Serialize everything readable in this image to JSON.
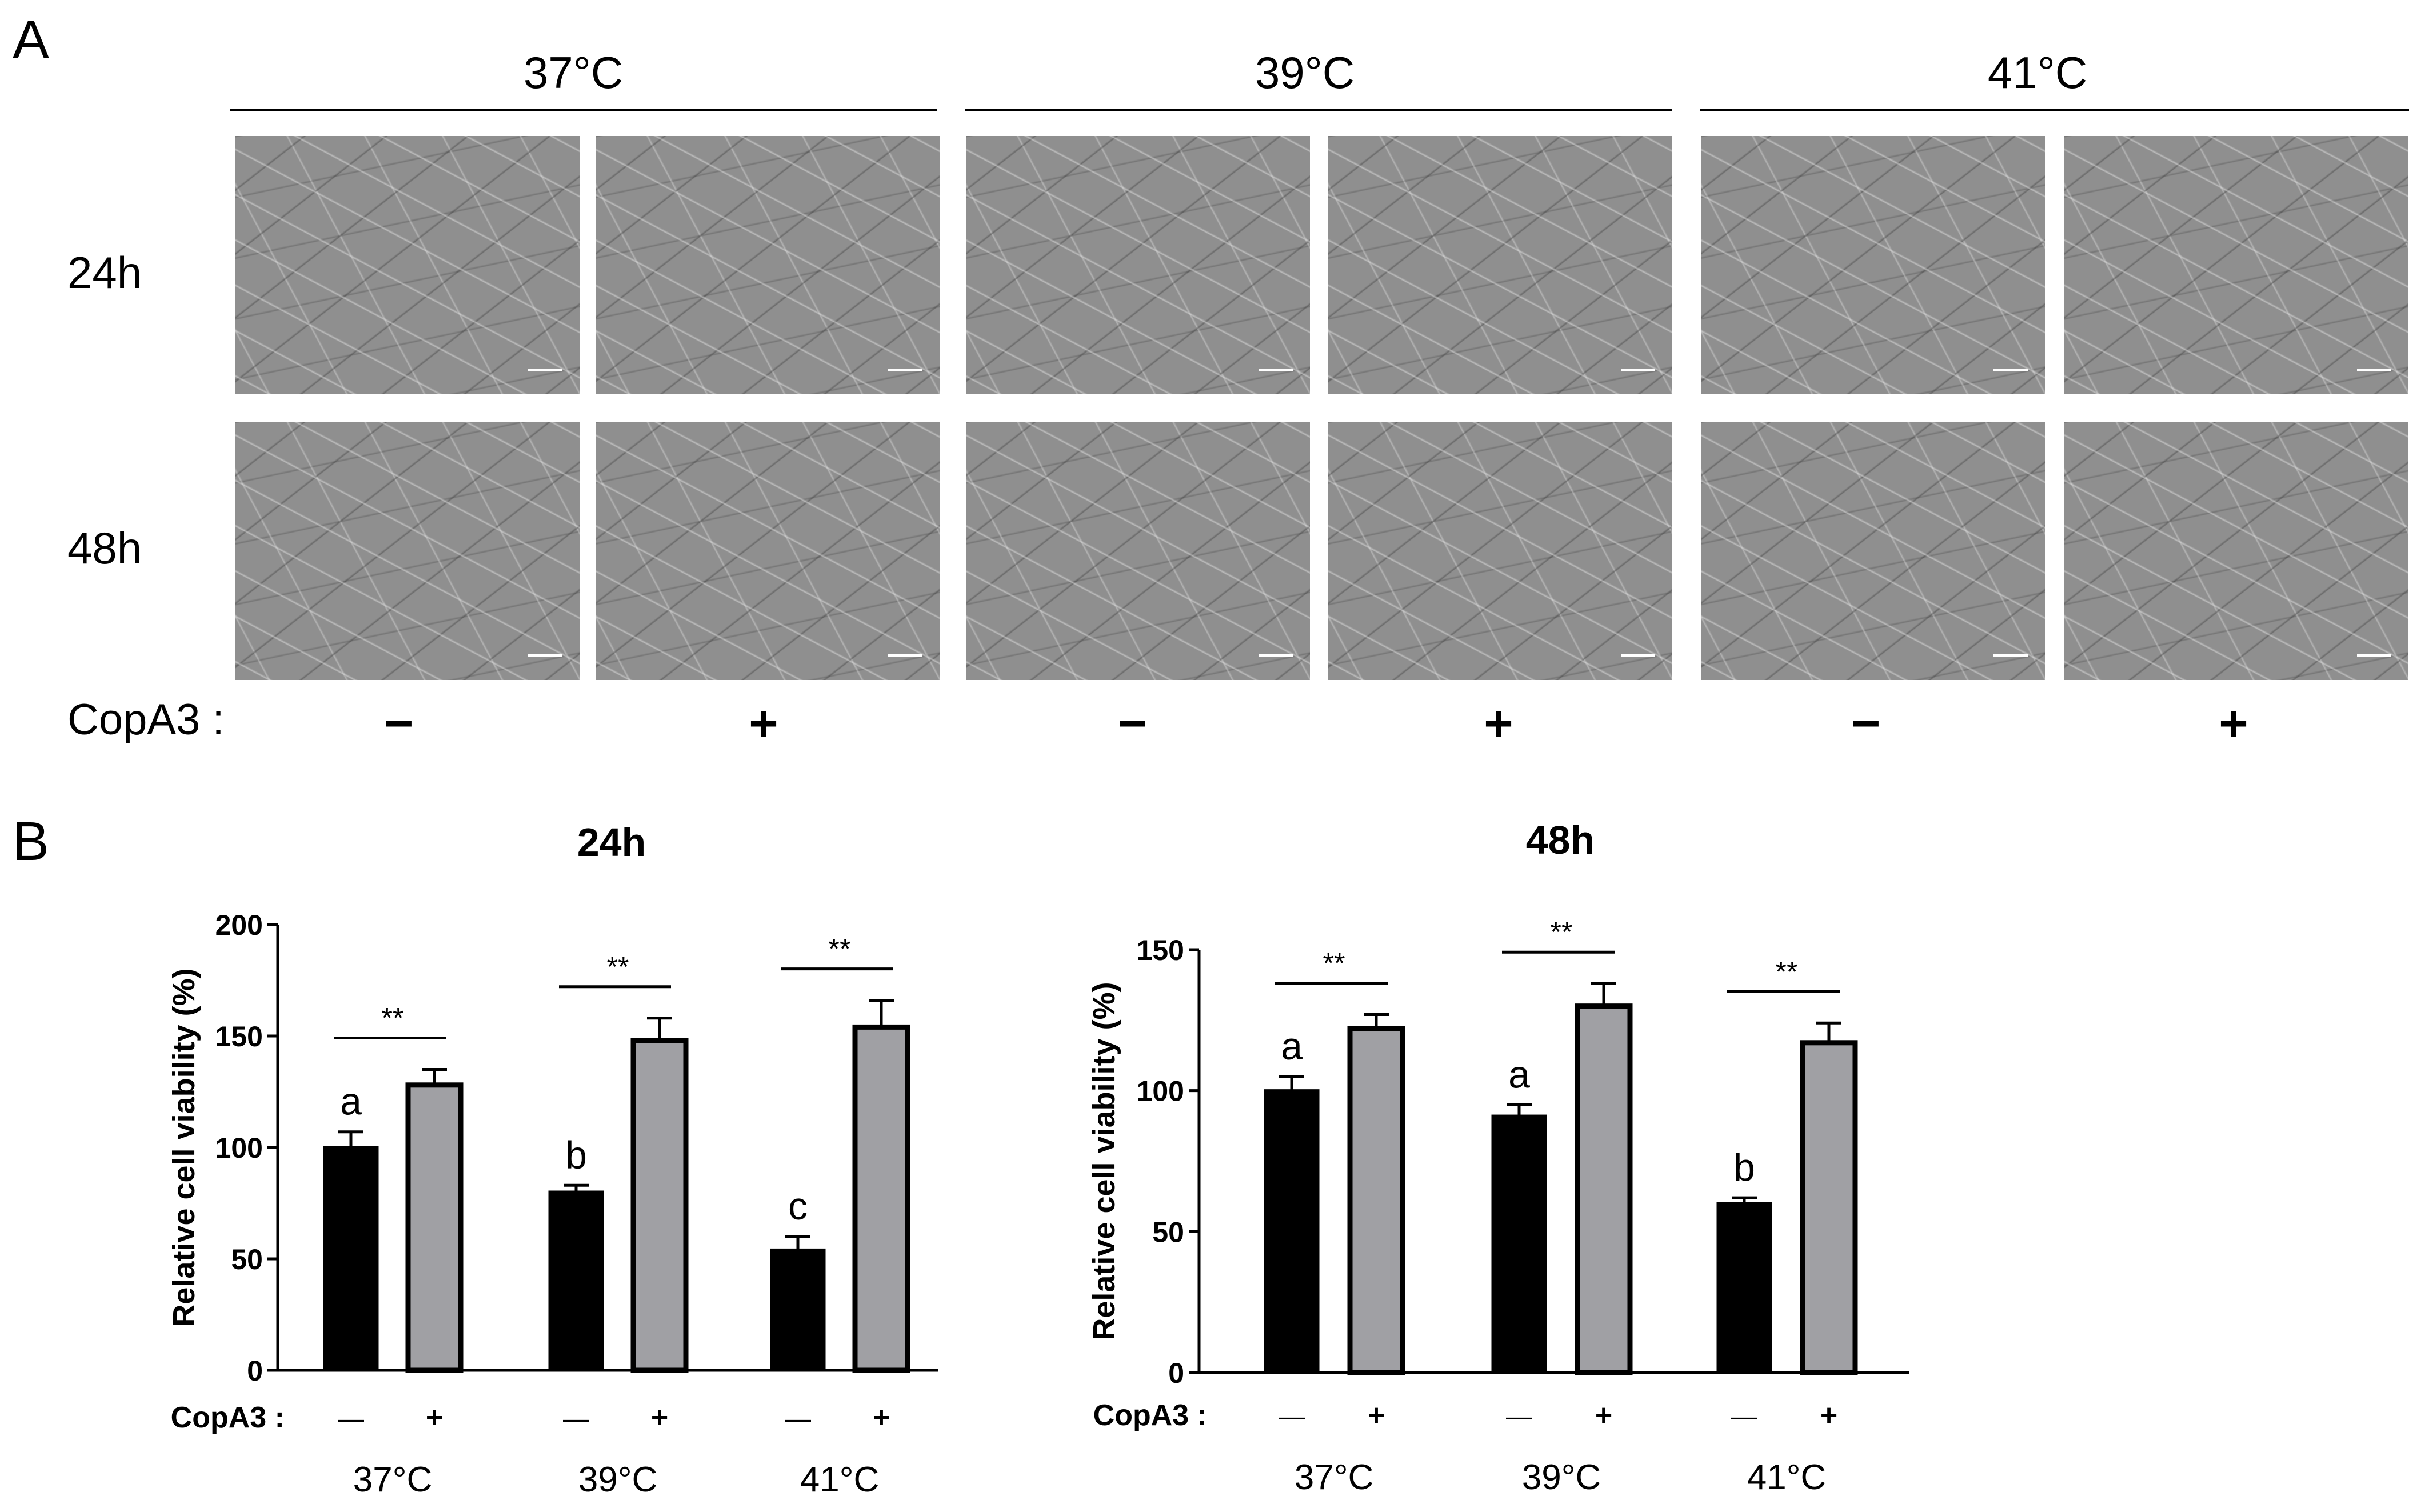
{
  "panel_a": {
    "letter": "A",
    "temperatures": [
      "37°C",
      "39°C",
      "41°C"
    ],
    "rows": [
      "24h",
      "48h"
    ],
    "copa3_label": "CopA3 :",
    "signs": [
      "−",
      "+",
      "−",
      "+",
      "−",
      "+"
    ]
  },
  "panel_b": {
    "letter": "B"
  },
  "colors": {
    "black_bar": "#000000",
    "grey_bar": "#a0a0a4"
  },
  "chart_data": [
    {
      "type": "bar",
      "title": "24h",
      "ylabel": "Relative cell viability  (%)",
      "xlabel": "",
      "ylim": [
        0,
        200
      ],
      "yticks": [
        0,
        50,
        100,
        150,
        200
      ],
      "categories": [
        "37°C",
        "39°C",
        "41°C"
      ],
      "copa3_label": "CopA3 :",
      "signs": [
        "—",
        "+"
      ],
      "series": [
        {
          "values": [
            100,
            80,
            54
          ],
          "errors": [
            7,
            3,
            6
          ],
          "color": "#000000"
        },
        {
          "values": [
            128,
            148,
            154
          ],
          "errors": [
            7,
            10,
            12
          ],
          "color": "#a0a0a4"
        }
      ],
      "letters": [
        "a",
        "b",
        "c"
      ],
      "significance": [
        "**",
        "**",
        "**"
      ]
    },
    {
      "type": "bar",
      "title": "48h",
      "ylabel": "Relative cell viability (%)",
      "xlabel": "",
      "ylim": [
        0,
        150
      ],
      "yticks": [
        0,
        50,
        100,
        150
      ],
      "categories": [
        "37°C",
        "39°C",
        "41°C"
      ],
      "copa3_label": "CopA3 :",
      "signs": [
        "—",
        "+"
      ],
      "series": [
        {
          "values": [
            100,
            91,
            60
          ],
          "errors": [
            5,
            4,
            2
          ],
          "color": "#000000"
        },
        {
          "values": [
            122,
            130,
            117
          ],
          "errors": [
            5,
            8,
            7
          ],
          "color": "#a0a0a4"
        }
      ],
      "letters": [
        "a",
        "a",
        "b"
      ],
      "significance": [
        "**",
        "**",
        "**"
      ]
    }
  ]
}
